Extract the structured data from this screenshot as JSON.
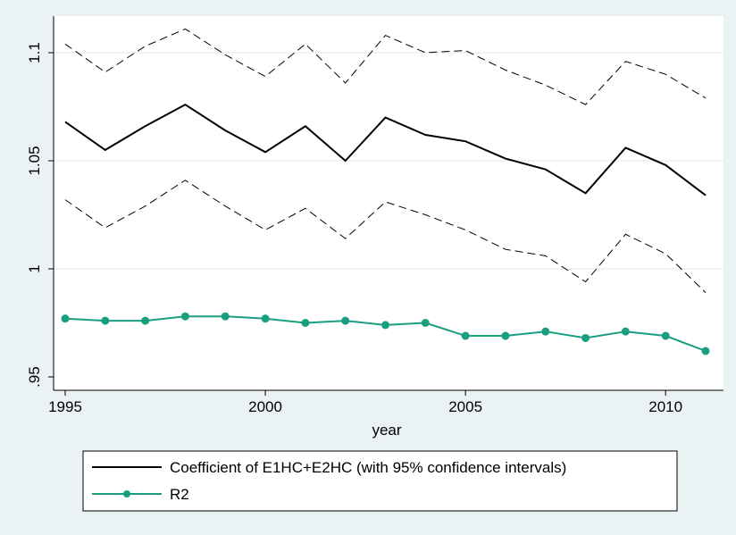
{
  "chart_data": {
    "type": "line",
    "xlabel": "year",
    "ylabel": "",
    "xlim": [
      1995,
      2011
    ],
    "ylim": [
      0.95,
      1.115
    ],
    "x_ticks": [
      1995,
      2000,
      2005,
      2010
    ],
    "y_ticks": [
      0.95,
      1,
      1.05,
      1.1
    ],
    "x_tick_labels": [
      "1995",
      "2000",
      "2005",
      "2010"
    ],
    "y_tick_labels": [
      ".95",
      "1",
      "1.05",
      "1.1"
    ],
    "grid": "horizontal",
    "legend_position": "bottom",
    "x": [
      1995,
      1996,
      1997,
      1998,
      1999,
      2000,
      2001,
      2002,
      2003,
      2004,
      2005,
      2006,
      2007,
      2008,
      2009,
      2010,
      2011
    ],
    "series": [
      {
        "name": "Coefficient of E1HC+E2HC (with 95% confidence intervals)",
        "role": "coefficient",
        "color": "#000000",
        "style": "solid",
        "values": [
          1.068,
          1.055,
          1.066,
          1.076,
          1.064,
          1.054,
          1.066,
          1.05,
          1.07,
          1.062,
          1.059,
          1.051,
          1.046,
          1.035,
          1.056,
          1.048,
          1.034
        ]
      },
      {
        "role": "upper-ci",
        "color": "#000000",
        "style": "dashed",
        "values": [
          1.104,
          1.091,
          1.103,
          1.111,
          1.099,
          1.089,
          1.104,
          1.086,
          1.108,
          1.1,
          1.101,
          1.092,
          1.085,
          1.076,
          1.096,
          1.09,
          1.079
        ]
      },
      {
        "role": "lower-ci",
        "color": "#000000",
        "style": "dashed",
        "values": [
          1.032,
          1.019,
          1.029,
          1.041,
          1.029,
          1.018,
          1.028,
          1.014,
          1.031,
          1.025,
          1.018,
          1.009,
          1.006,
          0.994,
          1.016,
          1.007,
          0.989
        ]
      },
      {
        "name": "R2",
        "role": "r2",
        "color": "#1a9e80",
        "style": "solid-markers",
        "values": [
          0.977,
          0.976,
          0.976,
          0.978,
          0.978,
          0.977,
          0.975,
          0.976,
          0.974,
          0.975,
          0.969,
          0.969,
          0.971,
          0.968,
          0.971,
          0.969,
          0.962
        ]
      }
    ]
  }
}
